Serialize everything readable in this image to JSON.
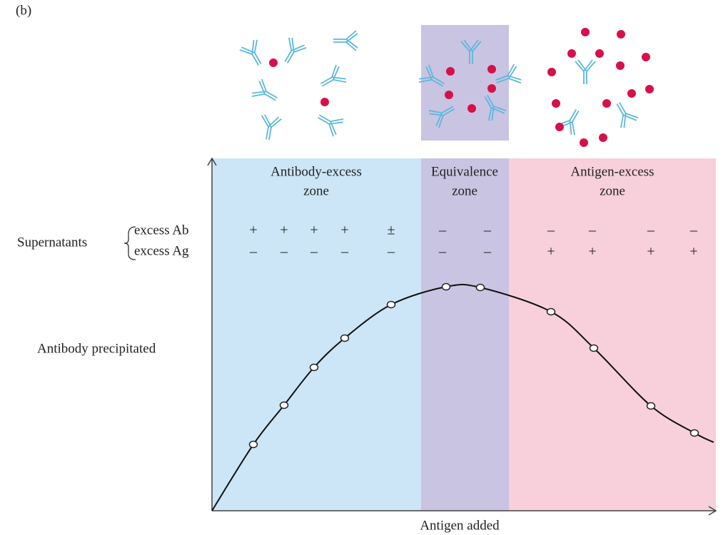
{
  "figure_label": "(b)",
  "zones": [
    {
      "lines": [
        "Antibody-excess",
        "zone"
      ]
    },
    {
      "lines": [
        "Equivalence",
        "zone"
      ]
    },
    {
      "lines": [
        "Antigen-excess",
        "zone"
      ]
    }
  ],
  "supernatants": {
    "label": "Supernatants",
    "rows": [
      {
        "label": "excess Ab",
        "signs": [
          "+",
          "+",
          "+",
          "+",
          "±",
          "–",
          "–",
          "–",
          "–",
          "–",
          "–"
        ]
      },
      {
        "label": "excess Ag",
        "signs": [
          "–",
          "–",
          "–",
          "–",
          "–",
          "–",
          "–",
          "+",
          "+",
          "+",
          "+"
        ]
      }
    ]
  },
  "y_axis_label": "Antibody precipitated",
  "x_axis_label": "Antigen added"
}
